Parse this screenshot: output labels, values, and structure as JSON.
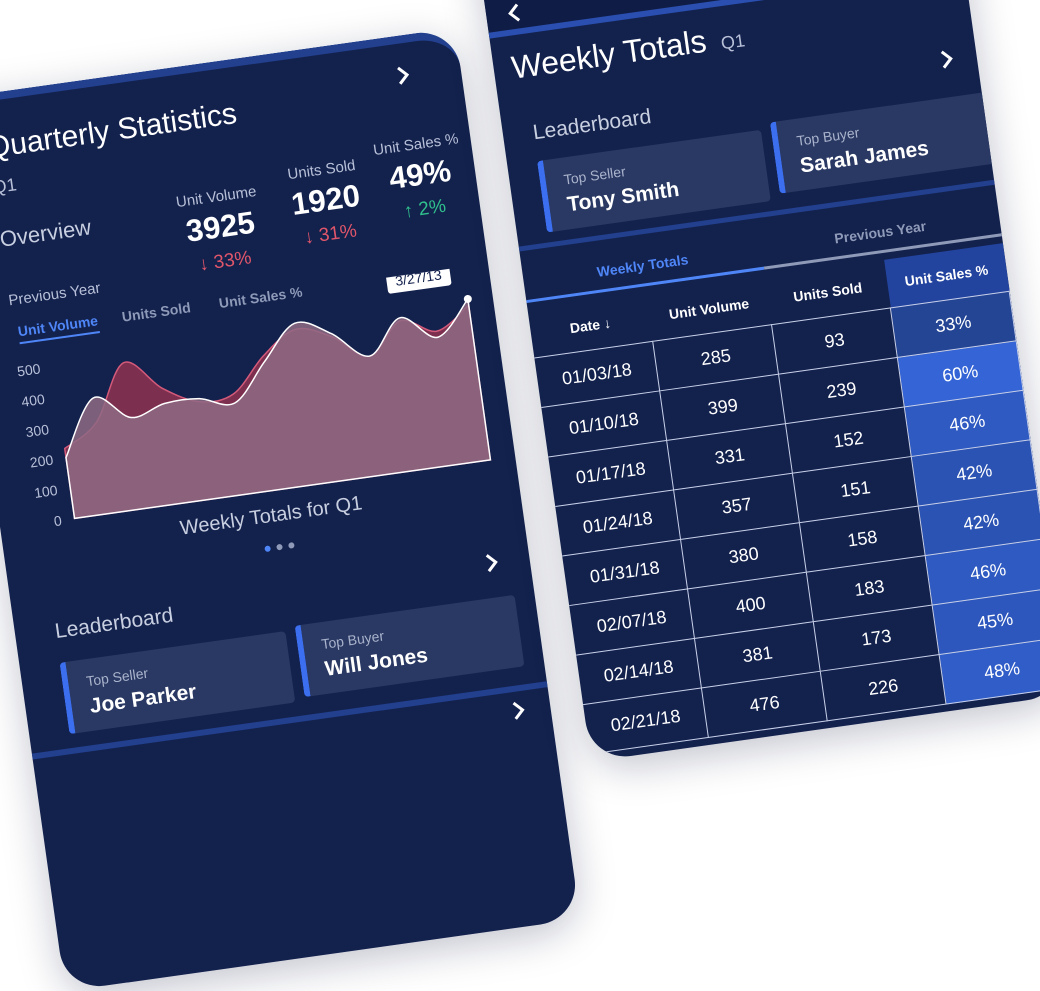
{
  "left_screen": {
    "title": "Quarterly Statistics",
    "subtitle": "Q1",
    "overview": "Overview",
    "stats": [
      {
        "label": "Unit Volume",
        "value": "3925",
        "change": "↓ 33%",
        "color": "#e0566a"
      },
      {
        "label": "Units Sold",
        "value": "1920",
        "change": "↓ 31%",
        "color": "#e0566a"
      },
      {
        "label": "Unit Sales %",
        "value": "49%",
        "change": "↑ 2%",
        "color": "#2fc08c"
      }
    ],
    "filter": "Previous Year",
    "tabs": [
      "Unit Volume",
      "Units Sold",
      "Unit Sales %"
    ],
    "leaderboard": {
      "title": "Leaderboard",
      "seller_label": "Top Seller",
      "seller": "Joe Parker",
      "buyer_label": "Top Buyer",
      "buyer": "Will Jones"
    }
  },
  "chart_data": {
    "type": "area",
    "title": "Weekly Totals for Q1",
    "annotation": "3/27/13",
    "ylim": [
      0,
      600
    ],
    "yticks": [
      0,
      100,
      200,
      300,
      400,
      500
    ],
    "series": [
      {
        "color": "#7d2f50",
        "values": [
          230,
          300,
          480,
          380,
          320,
          330,
          440,
          510,
          470,
          390,
          490,
          440,
          510
        ]
      },
      {
        "color": "#8e6a84",
        "values": [
          200,
          380,
          300,
          330,
          330,
          300,
          420,
          530,
          480,
          390,
          500,
          420,
          530
        ]
      }
    ]
  },
  "right_screen": {
    "title": "Weekly Totals",
    "subtitle": "Q1",
    "leaderboard": {
      "title": "Leaderboard",
      "seller_label": "Top Seller",
      "seller": "Tony Smith",
      "buyer_label": "Top Buyer",
      "buyer": "Sarah James"
    },
    "tabs": [
      "Weekly Totals",
      "Previous Year"
    ],
    "table": {
      "columns": [
        "Date ↓",
        "Unit Volume",
        "Units Sold",
        "Unit Sales %"
      ],
      "rows": [
        [
          "01/03/18",
          285,
          93,
          "33%"
        ],
        [
          "01/10/18",
          399,
          239,
          "60%"
        ],
        [
          "01/17/18",
          331,
          152,
          "46%"
        ],
        [
          "01/24/18",
          357,
          151,
          "42%"
        ],
        [
          "01/31/18",
          380,
          158,
          "42%"
        ],
        [
          "02/07/18",
          400,
          183,
          "46%"
        ],
        [
          "02/14/18",
          381,
          173,
          "45%"
        ],
        [
          "02/21/18",
          476,
          226,
          "48%"
        ]
      ]
    }
  }
}
